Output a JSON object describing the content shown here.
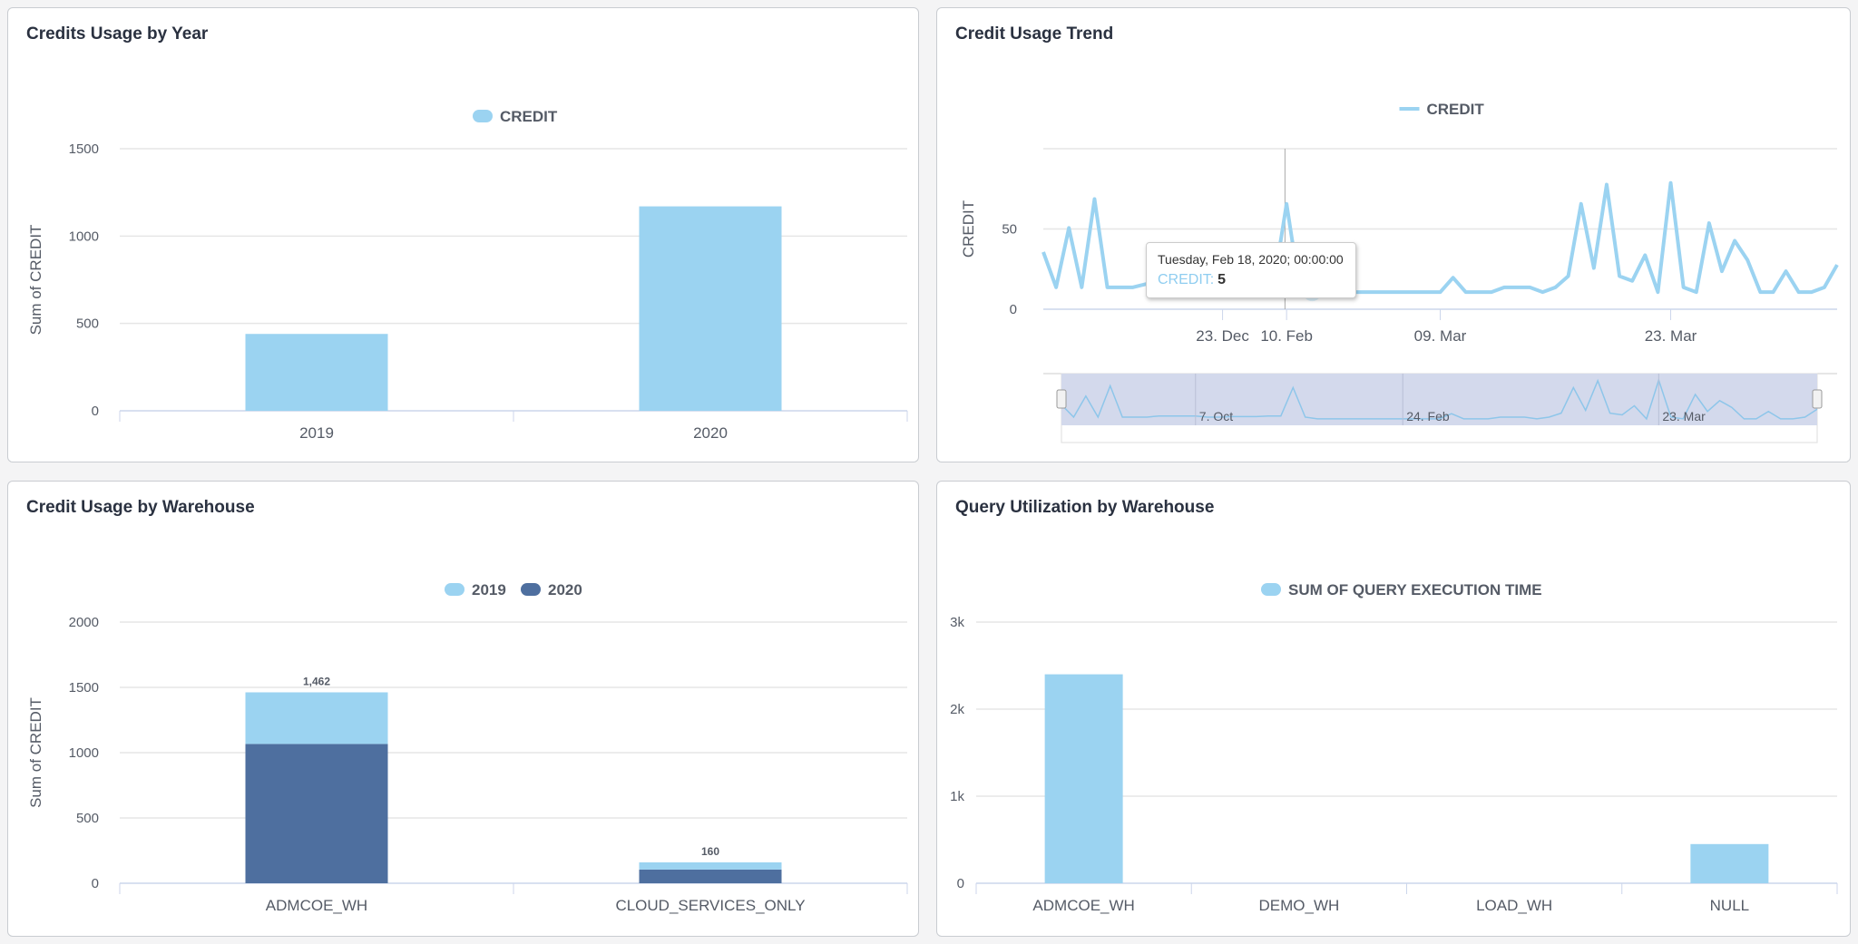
{
  "colors": {
    "light": "#9bd3f1",
    "dark": "#4e6f9f",
    "grid": "#e6e6e6",
    "axis": "#ccd6eb",
    "navigator": "#d3d9ec"
  },
  "panels": {
    "year": {
      "title": "Credits Usage by Year"
    },
    "trend": {
      "title": "Credit Usage Trend"
    },
    "warehouse": {
      "title": "Credit Usage by Warehouse"
    },
    "query": {
      "title": "Query Utilization by Warehouse"
    }
  },
  "tooltip": {
    "date": "Tuesday, Feb 18, 2020; 00:00:00",
    "series": "CREDIT:",
    "value": "5"
  },
  "chart_data": [
    {
      "id": "year",
      "type": "bar",
      "categories": [
        "2019",
        "2020"
      ],
      "series": [
        {
          "name": "CREDIT",
          "values": [
            440,
            1170
          ],
          "color": "#9bd3f1"
        }
      ],
      "ylabel": "Sum of CREDIT",
      "ylim": [
        0,
        1500
      ],
      "yticks": [
        "0",
        "500",
        "1000",
        "1500"
      ],
      "ytick_values": [
        0,
        500,
        1000,
        1500
      ],
      "legend": "top-center",
      "grid": true
    },
    {
      "id": "trend",
      "type": "line",
      "series": [
        {
          "name": "CREDIT",
          "color": "#9bd3f1",
          "values": [
            30,
            8,
            45,
            8,
            63,
            8,
            8,
            8,
            10,
            10,
            10,
            10,
            8,
            8,
            9,
            9,
            9,
            10,
            10,
            60,
            8,
            5,
            5,
            5,
            5,
            5,
            5,
            5,
            5,
            5,
            5,
            5,
            14,
            5,
            5,
            5,
            8,
            8,
            8,
            5,
            8,
            15,
            60,
            20,
            72,
            15,
            12,
            28,
            5,
            73,
            8,
            5,
            48,
            18,
            37,
            25,
            5,
            5,
            18,
            5,
            5,
            8,
            22
          ]
        }
      ],
      "xticks": [
        {
          "label": "23. Dec",
          "index": 14
        },
        {
          "label": "10. Feb",
          "index": 19
        },
        {
          "label": "09. Mar",
          "index": 31
        },
        {
          "label": "23. Mar",
          "index": 49
        }
      ],
      "navigator_ticks": [
        {
          "label": "7. Oct",
          "index": 11
        },
        {
          "label": "24. Feb",
          "index": 28
        },
        {
          "label": "23. Mar",
          "index": 49
        }
      ],
      "highlight_index": 21,
      "ylabel": "CREDIT",
      "ylim": [
        0,
        100
      ],
      "yticks": [
        "0",
        "50"
      ],
      "ytick_values": [
        0,
        50
      ],
      "legend": "top-center",
      "grid": true
    },
    {
      "id": "warehouse",
      "type": "bar",
      "stacked": true,
      "categories": [
        "ADMCOE_WH",
        "CLOUD_SERVICES_ONLY"
      ],
      "series": [
        {
          "name": "2019",
          "values": [
            395,
            55
          ],
          "color": "#9bd3f1"
        },
        {
          "name": "2020",
          "values": [
            1067,
            105
          ],
          "color": "#4e6f9f"
        }
      ],
      "totals": [
        "1,462",
        "160"
      ],
      "ylabel": "Sum of CREDIT",
      "ylim": [
        0,
        2000
      ],
      "yticks": [
        "0",
        "500",
        "1000",
        "1500",
        "2000"
      ],
      "ytick_values": [
        0,
        500,
        1000,
        1500,
        2000
      ],
      "legend": "top-center",
      "grid": true
    },
    {
      "id": "query",
      "type": "bar",
      "categories": [
        "ADMCOE_WH",
        "DEMO_WH",
        "LOAD_WH",
        "NULL"
      ],
      "series": [
        {
          "name": "SUM OF QUERY EXECUTION TIME",
          "values": [
            2400,
            0,
            0,
            450
          ],
          "color": "#9bd3f1"
        }
      ],
      "ylabel": "",
      "ylim": [
        0,
        3000
      ],
      "yticks": [
        "0",
        "1k",
        "2k",
        "3k"
      ],
      "ytick_values": [
        0,
        1000,
        2000,
        3000
      ],
      "legend": "top-center",
      "grid": true
    }
  ]
}
